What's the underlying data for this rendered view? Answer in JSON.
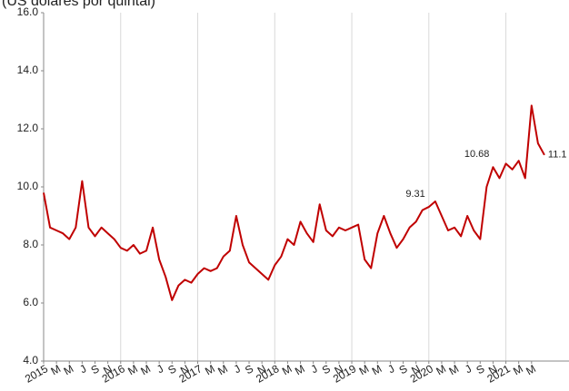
{
  "chart_data": {
    "type": "line",
    "title": "(US dólares por quintal)",
    "x": [
      "2015-01",
      "2015-02",
      "2015-03",
      "2015-04",
      "2015-05",
      "2015-06",
      "2015-07",
      "2015-08",
      "2015-09",
      "2015-10",
      "2015-11",
      "2015-12",
      "2016-01",
      "2016-02",
      "2016-03",
      "2016-04",
      "2016-05",
      "2016-06",
      "2016-07",
      "2016-08",
      "2016-09",
      "2016-10",
      "2016-11",
      "2016-12",
      "2017-01",
      "2017-02",
      "2017-03",
      "2017-04",
      "2017-05",
      "2017-06",
      "2017-07",
      "2017-08",
      "2017-09",
      "2017-10",
      "2017-11",
      "2017-12",
      "2018-01",
      "2018-02",
      "2018-03",
      "2018-04",
      "2018-05",
      "2018-06",
      "2018-07",
      "2018-08",
      "2018-09",
      "2018-10",
      "2018-11",
      "2018-12",
      "2019-01",
      "2019-02",
      "2019-03",
      "2019-04",
      "2019-05",
      "2019-06",
      "2019-07",
      "2019-08",
      "2019-09",
      "2019-10",
      "2019-11",
      "2019-12",
      "2020-01",
      "2020-02",
      "2020-03",
      "2020-04",
      "2020-05",
      "2020-06",
      "2020-07",
      "2020-08",
      "2020-09",
      "2020-10",
      "2020-11",
      "2020-12",
      "2021-01",
      "2021-02",
      "2021-03",
      "2021-04",
      "2021-05",
      "2021-06",
      "2021-07"
    ],
    "series": [
      {
        "color": "#c00000",
        "values": [
          9.8,
          8.6,
          8.5,
          8.4,
          8.2,
          8.6,
          10.2,
          8.6,
          8.3,
          8.6,
          8.4,
          8.2,
          7.9,
          7.8,
          8.0,
          7.7,
          7.8,
          8.6,
          7.5,
          6.9,
          6.1,
          6.6,
          6.8,
          6.7,
          7.0,
          7.2,
          7.1,
          7.2,
          7.6,
          7.8,
          9.0,
          8.0,
          7.4,
          7.2,
          7.0,
          6.8,
          7.3,
          7.6,
          8.2,
          8.0,
          8.8,
          8.4,
          8.1,
          9.4,
          8.5,
          8.3,
          8.6,
          8.5,
          8.6,
          8.7,
          7.5,
          7.2,
          8.4,
          9.0,
          8.4,
          7.9,
          8.2,
          8.6,
          8.8,
          9.2,
          9.31,
          9.5,
          9.0,
          8.5,
          8.6,
          8.3,
          9.0,
          8.5,
          8.2,
          10.0,
          10.68,
          10.3,
          10.8,
          10.6,
          10.9,
          10.3,
          12.8,
          11.5,
          11.1
        ]
      }
    ],
    "annotations": [
      {
        "x": "2020-01",
        "y": 9.31
      },
      {
        "x": "2020-11",
        "y": 10.68
      },
      {
        "x": "2021-07",
        "y": 11.1
      }
    ],
    "xlim": [
      "2015-01",
      "2021-08"
    ],
    "xticks": [
      {
        "value": "2015-01",
        "label": "2015"
      },
      {
        "value": "2015-03",
        "label": "M"
      },
      {
        "value": "2015-05",
        "label": "M"
      },
      {
        "value": "2015-07",
        "label": "J"
      },
      {
        "value": "2015-09",
        "label": "S"
      },
      {
        "value": "2015-11",
        "label": "N"
      },
      {
        "value": "2016-01",
        "label": "2016"
      },
      {
        "value": "2016-03",
        "label": "M"
      },
      {
        "value": "2016-05",
        "label": "M"
      },
      {
        "value": "2016-07",
        "label": "J"
      },
      {
        "value": "2016-09",
        "label": "S"
      },
      {
        "value": "2016-11",
        "label": "N"
      },
      {
        "value": "2017-01",
        "label": "2017"
      },
      {
        "value": "2017-03",
        "label": "M"
      },
      {
        "value": "2017-05",
        "label": "M"
      },
      {
        "value": "2017-07",
        "label": "J"
      },
      {
        "value": "2017-09",
        "label": "S"
      },
      {
        "value": "2017-11",
        "label": "N"
      },
      {
        "value": "2018-01",
        "label": "2018"
      },
      {
        "value": "2018-03",
        "label": "M"
      },
      {
        "value": "2018-05",
        "label": "M"
      },
      {
        "value": "2018-07",
        "label": "J"
      },
      {
        "value": "2018-09",
        "label": "S"
      },
      {
        "value": "2018-11",
        "label": "N"
      },
      {
        "value": "2019-01",
        "label": "2019"
      },
      {
        "value": "2019-03",
        "label": "M"
      },
      {
        "value": "2019-05",
        "label": "M"
      },
      {
        "value": "2019-07",
        "label": "J"
      },
      {
        "value": "2019-09",
        "label": "S"
      },
      {
        "value": "2019-11",
        "label": "N"
      },
      {
        "value": "2020-01",
        "label": "2020"
      },
      {
        "value": "2020-03",
        "label": "M"
      },
      {
        "value": "2020-05",
        "label": "M"
      },
      {
        "value": "2020-07",
        "label": "J"
      },
      {
        "value": "2020-09",
        "label": "S"
      },
      {
        "value": "2020-11",
        "label": "N"
      },
      {
        "value": "2021-01",
        "label": "2021"
      },
      {
        "value": "2021-03",
        "label": "M"
      },
      {
        "value": "2021-05",
        "label": "M"
      }
    ],
    "xgrid": [
      "2016-01",
      "2017-01",
      "2018-01",
      "2019-01",
      "2020-01",
      "2021-01"
    ],
    "ylim": [
      4,
      16
    ],
    "yticks": [
      {
        "value": 4,
        "label": "4.0"
      },
      {
        "value": 6,
        "label": "6.0"
      },
      {
        "value": 8,
        "label": "8.0"
      },
      {
        "value": 10,
        "label": "10.0"
      },
      {
        "value": 12,
        "label": "12.0"
      },
      {
        "value": 14,
        "label": "14.0"
      },
      {
        "value": 16,
        "label": "16.0"
      }
    ]
  }
}
